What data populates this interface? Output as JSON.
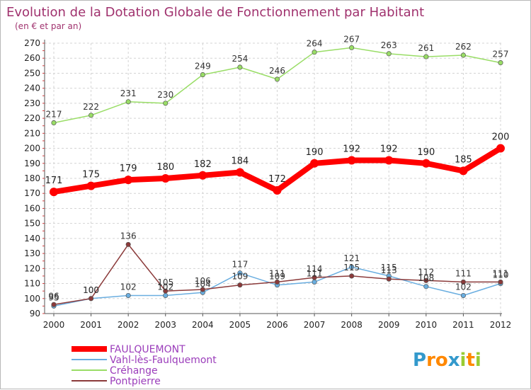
{
  "chart_data": {
    "type": "line",
    "title": "Evolution de la Dotation Globale de Fonctionnement par Habitant",
    "subtitle": "(en € et par an)",
    "x": [
      "2000",
      "2001",
      "2002",
      "2003",
      "2004",
      "2005",
      "2006",
      "2007",
      "2008",
      "2009",
      "2010",
      "2011",
      "2012"
    ],
    "ylim": [
      90,
      270
    ],
    "yticks": [
      90,
      100,
      110,
      120,
      130,
      140,
      150,
      160,
      170,
      180,
      190,
      200,
      210,
      220,
      230,
      240,
      250,
      260,
      270
    ],
    "grid": true,
    "legend_position": "bottom-left",
    "series": [
      {
        "name": "FAULQUEMONT",
        "color": "#ff0000",
        "values": [
          171,
          175,
          179,
          180,
          182,
          184,
          172,
          190,
          192,
          192,
          190,
          185,
          200
        ]
      },
      {
        "name": "Vahl-lès-Faulquemont",
        "color": "#6aaee0",
        "values": [
          95,
          100,
          102,
          102,
          104,
          117,
          109,
          111,
          121,
          115,
          108,
          102,
          110
        ]
      },
      {
        "name": "Créhange",
        "color": "#99dd66",
        "values": [
          217,
          222,
          231,
          230,
          249,
          254,
          246,
          264,
          267,
          263,
          261,
          262,
          257
        ]
      },
      {
        "name": "Pontpierre",
        "color": "#8b3a3a",
        "values": [
          96,
          100,
          136,
          105,
          106,
          109,
          111,
          114,
          115,
          113,
          112,
          111,
          111
        ]
      }
    ]
  },
  "logo": {
    "text": "Proxiti",
    "letters": [
      "P",
      "r",
      "o",
      "x",
      "i",
      "t",
      "i"
    ],
    "colors": [
      "#3399cc",
      "#ff8800",
      "#ff8800",
      "#3399cc",
      "#99cc33",
      "#ff8800",
      "#99cc33"
    ]
  }
}
